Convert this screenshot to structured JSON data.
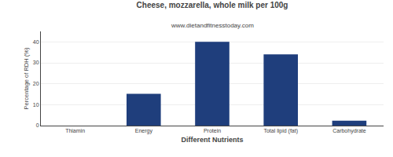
{
  "chart_data": {
    "type": "bar",
    "title": "Cheese, mozzarella, whole milk per 100g",
    "subtitle": "www.dietandfitnesstoday.com",
    "xlabel": "Different Nutrients",
    "ylabel": "Percentage of RDH (%)",
    "categories": [
      "Thiamin",
      "Energy",
      "Protein",
      "Total lipid (fat)",
      "Carbohydrate"
    ],
    "values": [
      0.0,
      15.2,
      40.0,
      34.0,
      2.3
    ],
    "color": "#1F3E7C",
    "ylim": [
      0,
      45
    ],
    "yticks": [
      0,
      10,
      20,
      30,
      40
    ],
    "grid": true
  }
}
